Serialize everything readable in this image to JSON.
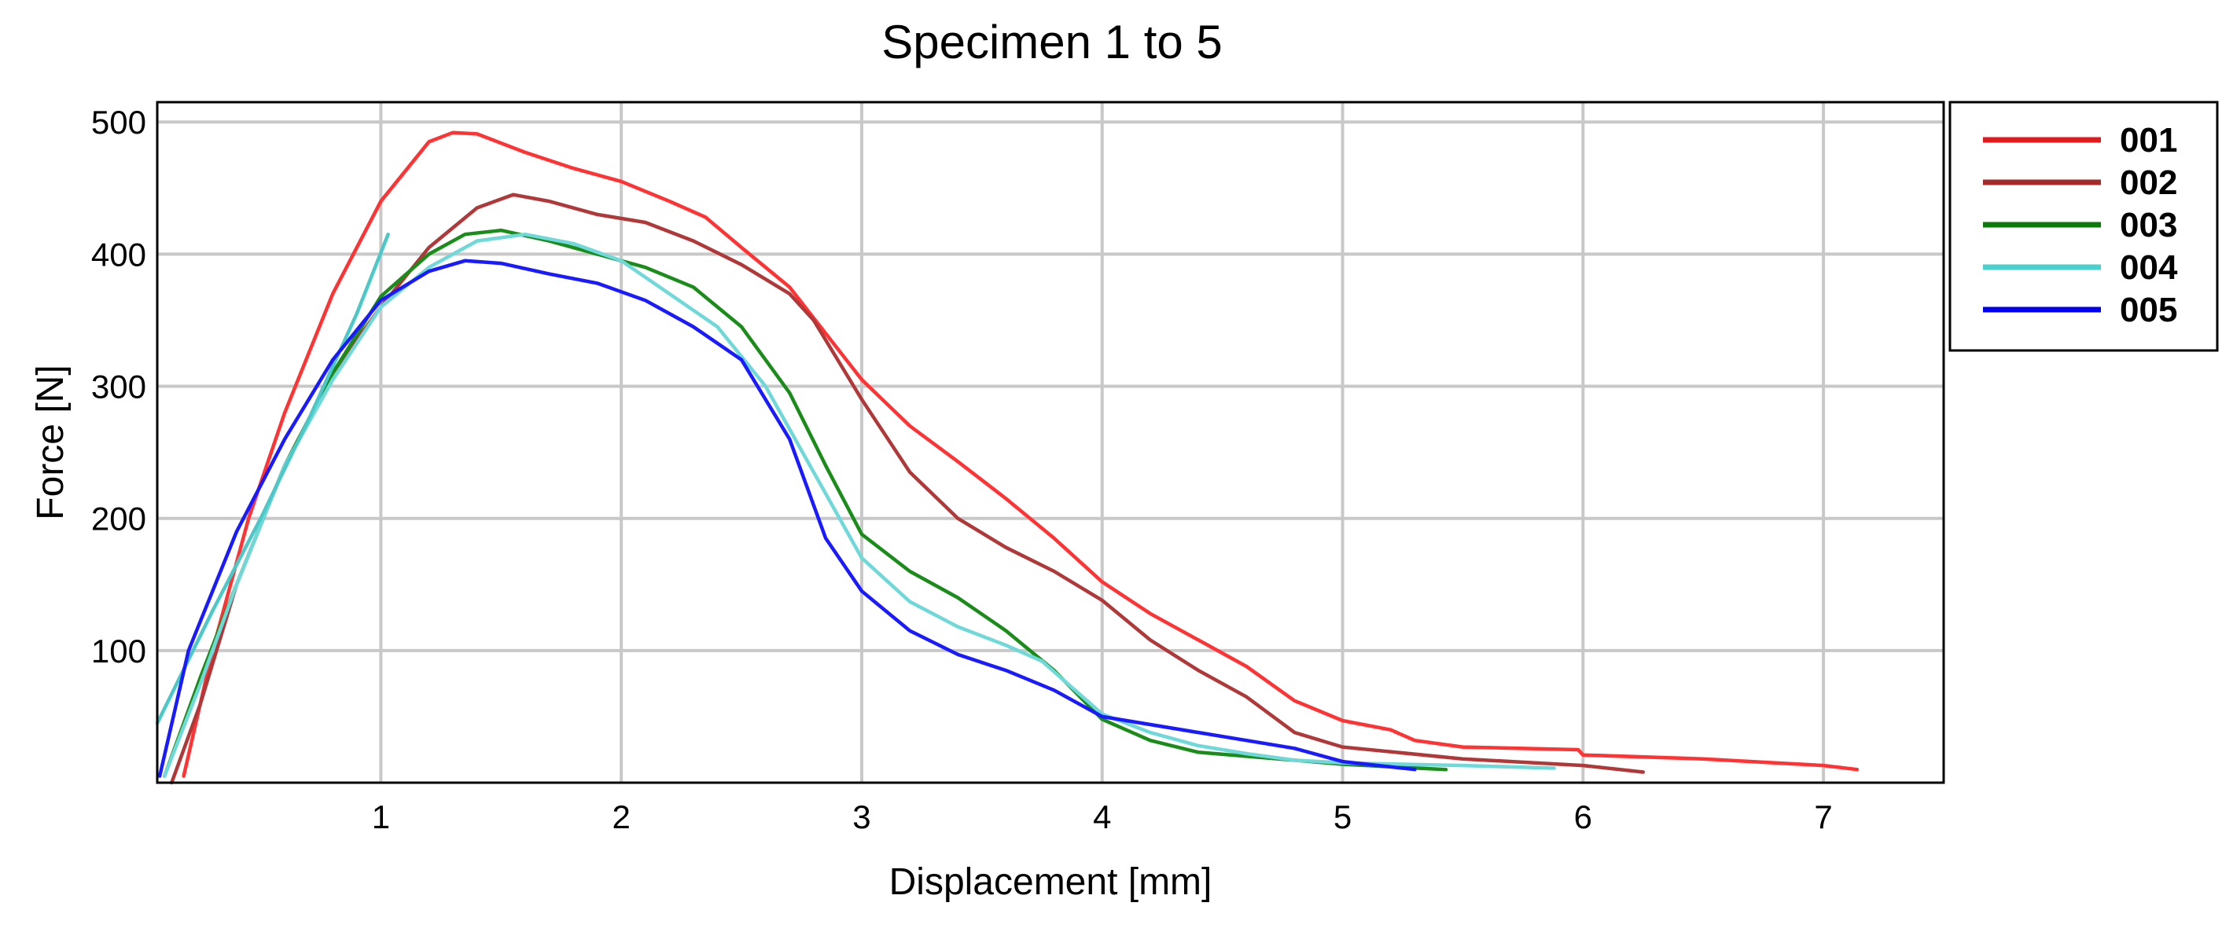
{
  "chart_data": {
    "type": "line",
    "title": "Specimen 1 to 5",
    "xlabel": "Displacement [mm]",
    "ylabel": "Force [N]",
    "xlim": [
      0.07,
      7.5
    ],
    "ylim": [
      0,
      515
    ],
    "xticks": [
      1,
      2,
      3,
      4,
      5,
      6,
      7
    ],
    "yticks": [
      100,
      200,
      300,
      400,
      500
    ],
    "grid": true,
    "legend_position": "outside right, top",
    "series": [
      {
        "name": "001",
        "color": "#ff3333",
        "points": [
          [
            0.18,
            5
          ],
          [
            0.3,
            100
          ],
          [
            0.45,
            200
          ],
          [
            0.6,
            280
          ],
          [
            0.8,
            370
          ],
          [
            1.0,
            440
          ],
          [
            1.2,
            485
          ],
          [
            1.3,
            492
          ],
          [
            1.4,
            491
          ],
          [
            1.6,
            477
          ],
          [
            1.8,
            465
          ],
          [
            2.0,
            455
          ],
          [
            2.2,
            440
          ],
          [
            2.35,
            428
          ],
          [
            2.5,
            405
          ],
          [
            2.7,
            375
          ],
          [
            2.85,
            340
          ],
          [
            3.0,
            305
          ],
          [
            3.2,
            270
          ],
          [
            3.4,
            243
          ],
          [
            3.6,
            215
          ],
          [
            3.8,
            185
          ],
          [
            4.0,
            152
          ],
          [
            4.2,
            128
          ],
          [
            4.4,
            108
          ],
          [
            4.6,
            88
          ],
          [
            4.8,
            62
          ],
          [
            5.0,
            47
          ],
          [
            5.2,
            40
          ],
          [
            5.3,
            32
          ],
          [
            5.5,
            27
          ],
          [
            5.98,
            25
          ],
          [
            6.0,
            21
          ],
          [
            6.5,
            18
          ],
          [
            7.0,
            13
          ],
          [
            7.14,
            10
          ]
        ]
      },
      {
        "name": "002",
        "color": "#b03838",
        "points": [
          [
            0.13,
            0
          ],
          [
            0.25,
            60
          ],
          [
            0.4,
            150
          ],
          [
            0.6,
            240
          ],
          [
            0.8,
            310
          ],
          [
            1.0,
            360
          ],
          [
            1.2,
            405
          ],
          [
            1.4,
            435
          ],
          [
            1.55,
            445
          ],
          [
            1.7,
            440
          ],
          [
            1.9,
            430
          ],
          [
            2.1,
            424
          ],
          [
            2.3,
            410
          ],
          [
            2.5,
            392
          ],
          [
            2.7,
            370
          ],
          [
            2.8,
            350
          ],
          [
            3.0,
            290
          ],
          [
            3.2,
            235
          ],
          [
            3.4,
            200
          ],
          [
            3.6,
            178
          ],
          [
            3.8,
            160
          ],
          [
            4.0,
            138
          ],
          [
            4.2,
            108
          ],
          [
            4.4,
            85
          ],
          [
            4.6,
            65
          ],
          [
            4.8,
            38
          ],
          [
            5.0,
            27
          ],
          [
            5.5,
            18
          ],
          [
            6.0,
            13
          ],
          [
            6.25,
            8
          ]
        ]
      },
      {
        "name": "003",
        "color": "#1a8c1a",
        "points": [
          [
            0.1,
            5
          ],
          [
            0.25,
            80
          ],
          [
            0.4,
            150
          ],
          [
            0.6,
            240
          ],
          [
            0.8,
            310
          ],
          [
            1.0,
            368
          ],
          [
            1.2,
            400
          ],
          [
            1.35,
            415
          ],
          [
            1.5,
            418
          ],
          [
            1.7,
            410
          ],
          [
            1.9,
            400
          ],
          [
            2.1,
            390
          ],
          [
            2.3,
            375
          ],
          [
            2.5,
            345
          ],
          [
            2.7,
            295
          ],
          [
            2.85,
            240
          ],
          [
            3.0,
            188
          ],
          [
            3.2,
            160
          ],
          [
            3.4,
            140
          ],
          [
            3.6,
            115
          ],
          [
            3.8,
            85
          ],
          [
            4.0,
            48
          ],
          [
            4.2,
            32
          ],
          [
            4.4,
            23
          ],
          [
            4.6,
            20
          ],
          [
            4.8,
            17
          ],
          [
            5.0,
            14
          ],
          [
            5.2,
            12
          ],
          [
            5.43,
            10
          ]
        ]
      },
      {
        "name": "004",
        "color": "#6fd8d8",
        "points": [
          [
            0.1,
            5
          ],
          [
            0.25,
            75
          ],
          [
            0.4,
            150
          ],
          [
            0.6,
            240
          ],
          [
            0.8,
            305
          ],
          [
            1.0,
            360
          ],
          [
            1.2,
            390
          ],
          [
            1.4,
            410
          ],
          [
            1.6,
            415
          ],
          [
            1.8,
            408
          ],
          [
            2.0,
            395
          ],
          [
            2.2,
            370
          ],
          [
            2.4,
            345
          ],
          [
            2.6,
            300
          ],
          [
            2.8,
            235
          ],
          [
            3.0,
            170
          ],
          [
            3.2,
            137
          ],
          [
            3.4,
            118
          ],
          [
            3.6,
            104
          ],
          [
            3.75,
            92
          ],
          [
            4.0,
            52
          ],
          [
            4.2,
            38
          ],
          [
            4.4,
            28
          ],
          [
            4.6,
            22
          ],
          [
            4.8,
            17
          ],
          [
            5.0,
            15
          ],
          [
            5.5,
            13
          ],
          [
            5.88,
            11
          ]
        ]
      },
      {
        "name": "004",
        "color": "#4cc8c8",
        "points": [
          [
            0.07,
            45
          ],
          [
            0.3,
            130
          ],
          [
            0.5,
            200
          ],
          [
            0.7,
            275
          ],
          [
            0.9,
            355
          ],
          [
            1.03,
            415
          ]
        ]
      },
      {
        "name": "005",
        "color": "#1a1aff",
        "points": [
          [
            0.08,
            5
          ],
          [
            0.2,
            100
          ],
          [
            0.4,
            190
          ],
          [
            0.6,
            260
          ],
          [
            0.8,
            320
          ],
          [
            1.0,
            365
          ],
          [
            1.2,
            387
          ],
          [
            1.35,
            395
          ],
          [
            1.5,
            393
          ],
          [
            1.7,
            385
          ],
          [
            1.9,
            378
          ],
          [
            2.1,
            365
          ],
          [
            2.3,
            345
          ],
          [
            2.5,
            320
          ],
          [
            2.7,
            260
          ],
          [
            2.85,
            185
          ],
          [
            3.0,
            145
          ],
          [
            3.2,
            115
          ],
          [
            3.4,
            97
          ],
          [
            3.6,
            85
          ],
          [
            3.8,
            70
          ],
          [
            4.0,
            50
          ],
          [
            4.2,
            44
          ],
          [
            4.4,
            38
          ],
          [
            4.6,
            32
          ],
          [
            4.8,
            26
          ],
          [
            5.0,
            16
          ],
          [
            5.3,
            10
          ]
        ]
      }
    ]
  },
  "legend": {
    "items": [
      {
        "label": "001",
        "color": "#e31a1c"
      },
      {
        "label": "002",
        "color": "#a52a2a"
      },
      {
        "label": "003",
        "color": "#0a7a0a"
      },
      {
        "label": "004",
        "color": "#48d1cc"
      },
      {
        "label": "005",
        "color": "#0000ee"
      }
    ]
  }
}
